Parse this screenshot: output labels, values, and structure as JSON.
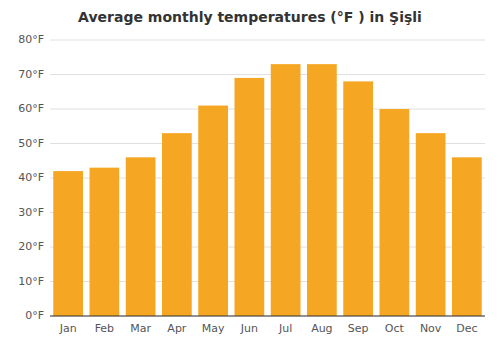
{
  "chart_data": {
    "type": "bar",
    "title": "Average monthly temperatures (°F ) in Şişli",
    "categories": [
      "Jan",
      "Feb",
      "Mar",
      "Apr",
      "May",
      "Jun",
      "Jul",
      "Aug",
      "Sep",
      "Oct",
      "Nov",
      "Dec"
    ],
    "values": [
      42,
      43,
      46,
      53,
      61,
      69,
      73,
      73,
      68,
      60,
      53,
      46
    ],
    "color": "#f5a623",
    "ylim": [
      0,
      80
    ],
    "yticks": [
      {
        "value": 0,
        "label": "0°F"
      },
      {
        "value": 10,
        "label": "10°F"
      },
      {
        "value": 20,
        "label": "20°F"
      },
      {
        "value": 30,
        "label": "30°F"
      },
      {
        "value": 40,
        "label": "40°F"
      },
      {
        "value": 50,
        "label": "50°F"
      },
      {
        "value": 60,
        "label": "60°F"
      },
      {
        "value": 70,
        "label": "70°F"
      },
      {
        "value": 80,
        "label": "80°F"
      }
    ],
    "grid": true
  }
}
